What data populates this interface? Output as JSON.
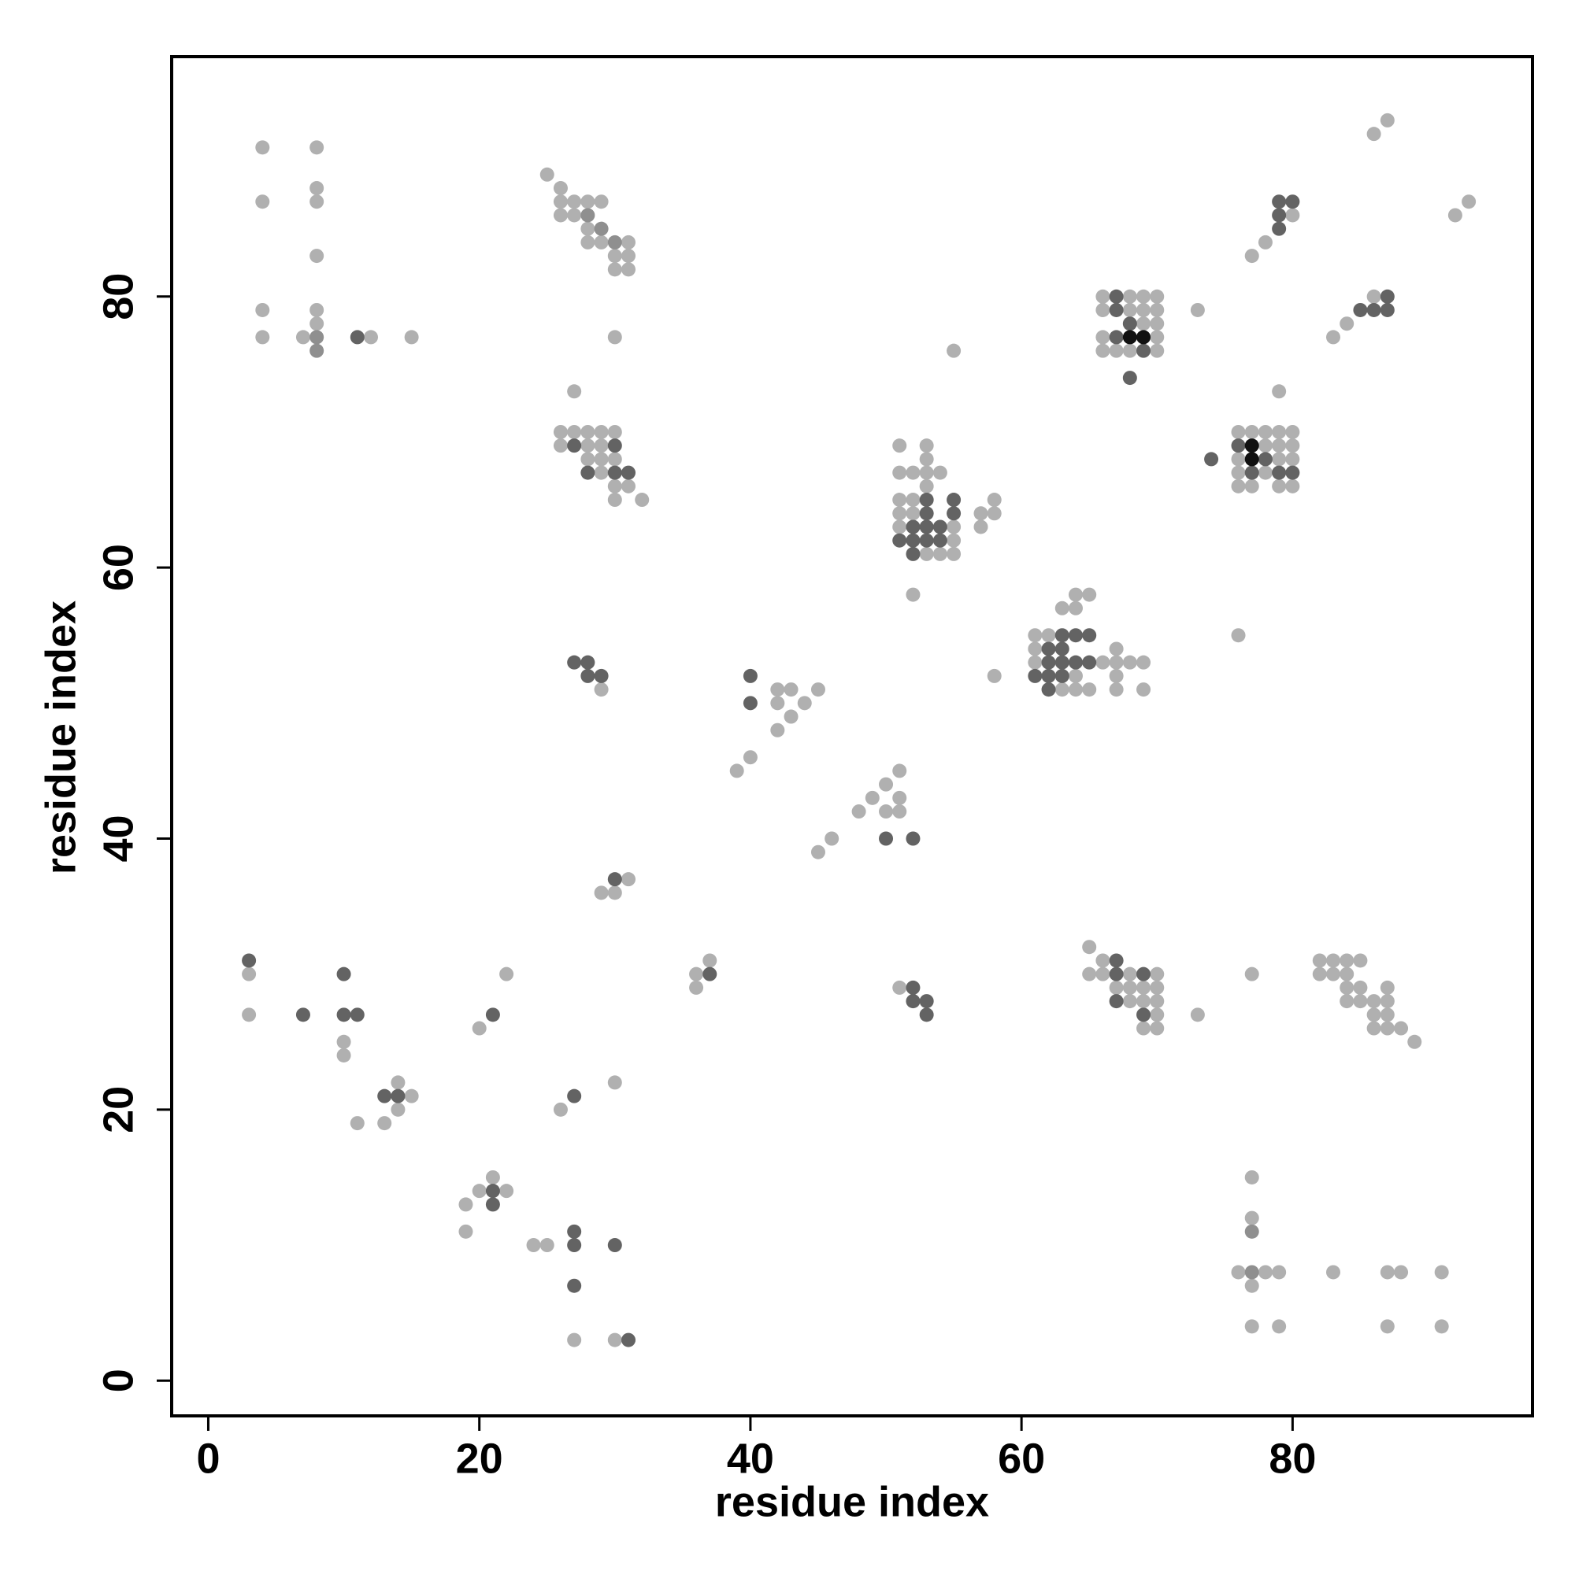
{
  "chart_data": {
    "type": "scatter",
    "xlabel": "residue index",
    "ylabel": "residue index",
    "xlim": [
      -2.7,
      97.7
    ],
    "ylim": [
      -2.6,
      97.7
    ],
    "xticks": [
      0,
      20,
      40,
      60,
      80
    ],
    "yticks": [
      0,
      20,
      40,
      60,
      80
    ],
    "grid": false,
    "series": [
      {
        "color": "#b0b0b0",
        "x": [
          4,
          4,
          4,
          4,
          8,
          8,
          8,
          8,
          8,
          8,
          7,
          12,
          15,
          25,
          26,
          26,
          27,
          28,
          29,
          26,
          27,
          28,
          28,
          29,
          31,
          30,
          31,
          30,
          31,
          30,
          86,
          87,
          92,
          93,
          80,
          77,
          78,
          83,
          84,
          86,
          66,
          68,
          69,
          70,
          66,
          68,
          69,
          70,
          69,
          70,
          66,
          70,
          66,
          67,
          68,
          70,
          73,
          55,
          27,
          26,
          27,
          28,
          29,
          30,
          26,
          28,
          29,
          28,
          29,
          30,
          29,
          30,
          31,
          30,
          32,
          79,
          76,
          77,
          78,
          79,
          80,
          78,
          79,
          80,
          76,
          79,
          80,
          76,
          78,
          76,
          77,
          79,
          80,
          76,
          51,
          53,
          53,
          51,
          52,
          53,
          54,
          53,
          51,
          52,
          58,
          51,
          52,
          57,
          58,
          51,
          55,
          57,
          55,
          53,
          54,
          55,
          52,
          58,
          65,
          64,
          64,
          63,
          61,
          62,
          61,
          67,
          61,
          66,
          67,
          68,
          69,
          64,
          67,
          63,
          64,
          65,
          67,
          69,
          29,
          31,
          29,
          30,
          42,
          43,
          42,
          44,
          43,
          45,
          42,
          40,
          39,
          51,
          50,
          49,
          51,
          50,
          51,
          48,
          46,
          45,
          3,
          3,
          10,
          10,
          15,
          14,
          14,
          11,
          13,
          20,
          22,
          19,
          20,
          21,
          22,
          19,
          24,
          25,
          27,
          30,
          26,
          30,
          36,
          36,
          37,
          51,
          65,
          66,
          65,
          66,
          68,
          70,
          67,
          68,
          69,
          70,
          68,
          69,
          70,
          70,
          69,
          70,
          73,
          77,
          82,
          83,
          84,
          85,
          82,
          83,
          84,
          84,
          85,
          87,
          84,
          85,
          86,
          87,
          86,
          87,
          86,
          87,
          88,
          89,
          77,
          77,
          76,
          78,
          79,
          83,
          87,
          88,
          91,
          77,
          77,
          79,
          87,
          91
        ],
        "y": [
          91,
          87,
          79,
          77,
          91,
          88,
          87,
          83,
          79,
          78,
          77,
          77,
          77,
          89,
          88,
          87,
          87,
          87,
          87,
          86,
          86,
          85,
          84,
          84,
          84,
          83,
          83,
          82,
          82,
          77,
          92,
          93,
          86,
          87,
          86,
          83,
          84,
          77,
          78,
          80,
          80,
          80,
          80,
          80,
          79,
          79,
          79,
          79,
          78,
          78,
          77,
          77,
          76,
          76,
          76,
          76,
          79,
          76,
          73,
          70,
          70,
          70,
          70,
          70,
          69,
          69,
          69,
          68,
          68,
          68,
          67,
          66,
          66,
          65,
          65,
          73,
          70,
          70,
          70,
          70,
          70,
          69,
          69,
          69,
          68,
          68,
          68,
          67,
          67,
          66,
          66,
          66,
          66,
          55,
          69,
          69,
          68,
          67,
          67,
          67,
          67,
          66,
          65,
          65,
          65,
          64,
          64,
          64,
          64,
          63,
          63,
          63,
          62,
          61,
          61,
          61,
          58,
          52,
          58,
          58,
          57,
          57,
          55,
          55,
          54,
          54,
          53,
          53,
          53,
          53,
          53,
          52,
          52,
          51,
          51,
          51,
          51,
          51,
          51,
          37,
          36,
          36,
          51,
          51,
          50,
          50,
          49,
          51,
          48,
          46,
          45,
          45,
          44,
          43,
          43,
          42,
          42,
          42,
          40,
          39,
          30,
          27,
          25,
          24,
          21,
          22,
          20,
          19,
          19,
          26,
          30,
          13,
          14,
          15,
          14,
          11,
          10,
          10,
          3,
          3,
          20,
          22,
          30,
          29,
          31,
          29,
          32,
          31,
          30,
          30,
          30,
          30,
          29,
          29,
          29,
          29,
          28,
          28,
          28,
          27,
          26,
          26,
          27,
          30,
          31,
          31,
          31,
          31,
          30,
          30,
          30,
          29,
          29,
          29,
          28,
          28,
          28,
          28,
          27,
          27,
          26,
          26,
          26,
          25,
          15,
          12,
          8,
          8,
          8,
          8,
          8,
          8,
          8,
          7,
          4,
          4,
          4,
          4
        ]
      },
      {
        "color": "#8f8f8f",
        "x": [
          8,
          8,
          28,
          29,
          30,
          77,
          77
        ],
        "y": [
          77,
          76,
          86,
          85,
          84,
          11,
          8
        ]
      },
      {
        "color": "#636363",
        "x": [
          11,
          79,
          80,
          79,
          79,
          85,
          86,
          87,
          87,
          67,
          67,
          68,
          67,
          69,
          68,
          27,
          30,
          28,
          30,
          31,
          76,
          74,
          78,
          77,
          79,
          80,
          53,
          55,
          53,
          55,
          52,
          53,
          54,
          51,
          52,
          53,
          54,
          52,
          63,
          64,
          65,
          62,
          63,
          62,
          63,
          64,
          65,
          61,
          62,
          63,
          62,
          27,
          28,
          28,
          29,
          30,
          40,
          40,
          50,
          52,
          3,
          7,
          10,
          10,
          11,
          13,
          14,
          21,
          21,
          21,
          27,
          27,
          30,
          27,
          31,
          27,
          37,
          52,
          52,
          53,
          53,
          67,
          67,
          69,
          67,
          69
        ],
        "y": [
          77,
          87,
          87,
          86,
          85,
          79,
          79,
          79,
          80,
          80,
          79,
          78,
          77,
          76,
          74,
          69,
          69,
          67,
          67,
          67,
          69,
          68,
          68,
          67,
          67,
          67,
          65,
          65,
          64,
          64,
          63,
          63,
          63,
          62,
          62,
          62,
          62,
          61,
          55,
          55,
          55,
          54,
          54,
          53,
          53,
          53,
          53,
          52,
          52,
          52,
          51,
          53,
          53,
          52,
          52,
          37,
          52,
          50,
          40,
          40,
          31,
          27,
          30,
          27,
          27,
          21,
          21,
          27,
          14,
          13,
          11,
          10,
          10,
          7,
          3,
          21,
          30,
          29,
          28,
          28,
          27,
          31,
          30,
          30,
          28,
          27
        ]
      },
      {
        "color": "#111111",
        "x": [
          68,
          69,
          77,
          77
        ],
        "y": [
          77,
          77,
          69,
          68
        ]
      }
    ]
  }
}
